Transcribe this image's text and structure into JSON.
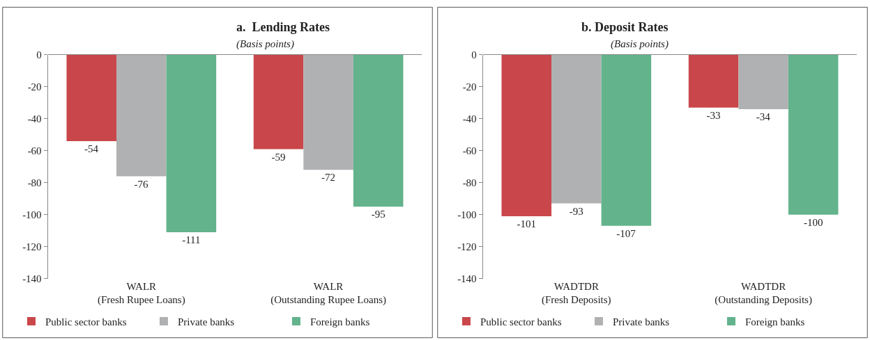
{
  "chart_data": [
    {
      "type": "bar",
      "title": "a.  Lending Rates",
      "subtitle": "(Basis points)",
      "categories": [
        "WALR\n(Fresh Rupee Loans)",
        "WALR\n(Outstanding Rupee Loans)"
      ],
      "series": [
        {
          "name": "Public sector banks",
          "color": "#c9474a",
          "values": [
            -54,
            -59
          ]
        },
        {
          "name": "Private banks",
          "color": "#b0b1b3",
          "values": [
            -76,
            -72
          ]
        },
        {
          "name": "Foreign banks",
          "color": "#63b38c",
          "values": [
            -111,
            -95
          ]
        }
      ],
      "ylim": [
        -140,
        0
      ],
      "yticks": [
        -140,
        -120,
        -100,
        -80,
        -60,
        -40,
        -20,
        0
      ],
      "data_labels": true,
      "legend": "bottom",
      "grid": false
    },
    {
      "type": "bar",
      "title": "b. Deposit Rates",
      "subtitle": "(Basis points)",
      "categories": [
        "WADTDR\n(Fresh Deposits)",
        "WADTDR\n(Outstanding Deposits)"
      ],
      "series": [
        {
          "name": "Public sector banks",
          "color": "#c9474a",
          "values": [
            -101,
            -33
          ]
        },
        {
          "name": "Private banks",
          "color": "#b0b1b3",
          "values": [
            -93,
            -34
          ]
        },
        {
          "name": "Foreign banks",
          "color": "#63b38c",
          "values": [
            -107,
            -100
          ]
        }
      ],
      "ylim": [
        -140,
        0
      ],
      "yticks": [
        -140,
        -120,
        -100,
        -80,
        -60,
        -40,
        -20,
        0
      ],
      "data_labels": true,
      "legend": "bottom",
      "grid": false
    }
  ]
}
